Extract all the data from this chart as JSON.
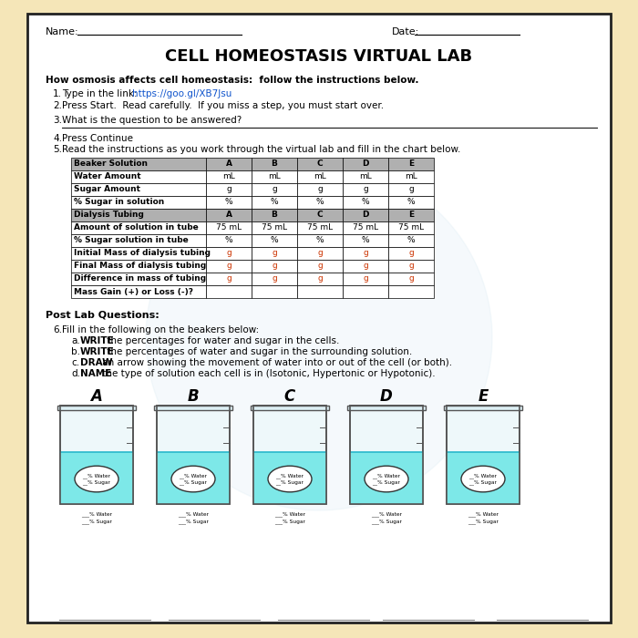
{
  "title": "CELL HOMEOSTASIS VIRTUAL LAB",
  "background_page": "#ffffff",
  "background_outer": "#f5e6b8",
  "name_label": "Name:",
  "date_label": "Date:",
  "intro_bold": "How osmosis affects cell homeostasis:  follow the instructions below.",
  "link_text": "https://goo.gl/XB7Jsu",
  "table1_cols": [
    "Beaker Solution",
    "A",
    "B",
    "C",
    "D",
    "E"
  ],
  "table1_rows": [
    [
      "Water Amount",
      "mL",
      "mL",
      "mL",
      "mL",
      "mL"
    ],
    [
      "Sugar Amount",
      "g",
      "g",
      "g",
      "g",
      "g"
    ],
    [
      "% Sugar in solution",
      "%",
      "%",
      "%",
      "%",
      "%"
    ]
  ],
  "table2_cols": [
    "Dialysis Tubing",
    "A",
    "B",
    "C",
    "D",
    "E"
  ],
  "table2_rows": [
    [
      "Amount of solution in tube",
      "75 mL",
      "75 mL",
      "75 mL",
      "75 mL",
      "75 mL"
    ],
    [
      "% Sugar solution in tube",
      "%",
      "%",
      "%",
      "%",
      "%"
    ],
    [
      "Initial Mass of dialysis tubing",
      "g",
      "g",
      "g",
      "g",
      "g"
    ],
    [
      "Final Mass of dialysis tubing",
      "g",
      "g",
      "g",
      "g",
      "g"
    ],
    [
      "Difference in mass of tubing",
      "g",
      "g",
      "g",
      "g",
      "g"
    ],
    [
      "Mass Gain (+) or Loss (-)?",
      "",
      "",
      "",
      "",
      ""
    ]
  ],
  "table2_orange_rows": [
    2,
    3,
    4
  ],
  "post_lab_title": "Post Lab Questions:",
  "post_lab_q6": "Fill in the following on the beakers below:",
  "post_lab_items": [
    [
      "WRITE",
      " the percentages for water and sugar in the cells."
    ],
    [
      "WRITE",
      " the percentages of water and sugar in the surrounding solution."
    ],
    [
      "DRAW",
      " an arrow showing the movement of water into or out of the cell (or both)."
    ],
    [
      "NAME",
      " the type of solution each cell is in (Isotonic, Hypertonic or Hypotonic)."
    ]
  ],
  "beaker_labels": [
    "A",
    "B",
    "C",
    "D",
    "E"
  ],
  "beaker_water_color": "#7de8e8",
  "beaker_outline": "#555555",
  "cell_outline": "#333333"
}
